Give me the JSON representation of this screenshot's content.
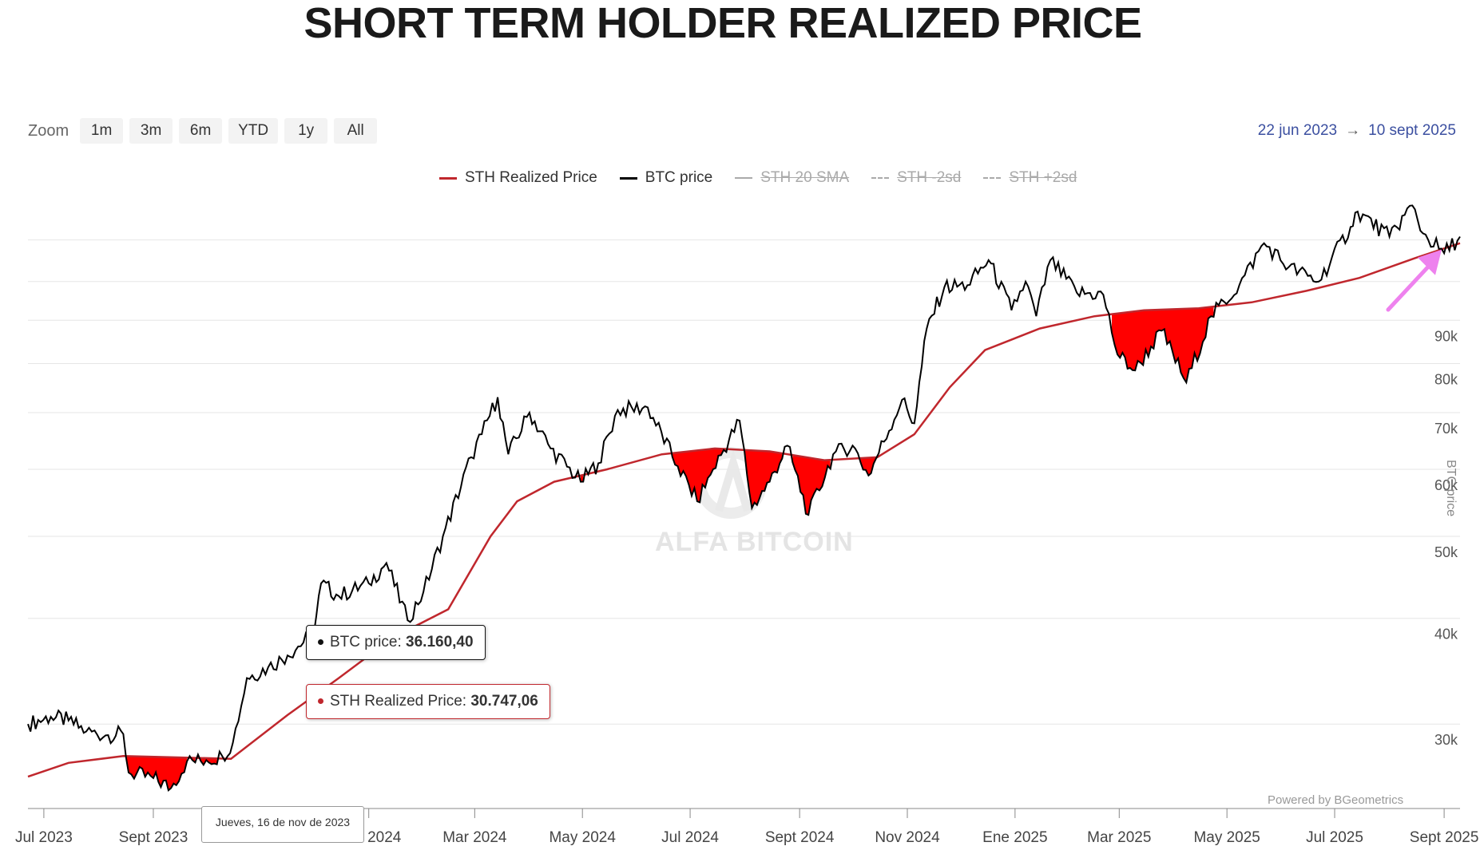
{
  "page_title": "SHORT TERM HOLDER REALIZED PRICE",
  "zoom": {
    "label": "Zoom",
    "buttons": [
      "1m",
      "3m",
      "6m",
      "YTD",
      "1y",
      "All"
    ]
  },
  "date_range": {
    "from": "22 jun 2023",
    "arrow": "→",
    "to": "10 sept 2025"
  },
  "legend": [
    {
      "label": "STH Realized Price",
      "color": "#c0272d",
      "visible": true,
      "style": "solid"
    },
    {
      "label": "BTC price",
      "color": "#000000",
      "visible": true,
      "style": "solid"
    },
    {
      "label": "STH 20 SMA",
      "color": "#aaaaaa",
      "visible": false,
      "style": "solid"
    },
    {
      "label": "STH -2sd",
      "color": "#aaaaaa",
      "visible": false,
      "style": "dashed"
    },
    {
      "label": "STH +2sd",
      "color": "#aaaaaa",
      "visible": false,
      "style": "dashed"
    }
  ],
  "tooltips": {
    "btc_label": "BTC price:",
    "btc_value": "36.160,40",
    "sth_label": "STH Realized Price:",
    "sth_value": "30.747,06",
    "date": "Jueves, 16 de nov de 2023"
  },
  "credit": "Powered by BGeometrics",
  "watermark": "ALFA BITCOIN",
  "right_axis_title": "BTC price",
  "colors": {
    "btc": "#000000",
    "sth": "#c0272d",
    "fill_below": "#ff0000",
    "annotation_arrow": "#ee82ee"
  },
  "chart_data": {
    "type": "line",
    "title": "SHORT TERM HOLDER REALIZED PRICE",
    "y_scale": "log",
    "ylim": [
      24000,
      125000
    ],
    "y_ticks": [
      {
        "value": 30000,
        "label": "30k"
      },
      {
        "value": 40000,
        "label": "40k"
      },
      {
        "value": 50000,
        "label": "50k"
      },
      {
        "value": 60000,
        "label": "60k"
      },
      {
        "value": 70000,
        "label": "70k"
      },
      {
        "value": 80000,
        "label": "80k"
      },
      {
        "value": 90000,
        "label": "90k"
      }
    ],
    "x_range": [
      "2023-06-22",
      "2025-09-10"
    ],
    "x_ticks": [
      {
        "date": "2023-07-01",
        "label": "Jul 2023"
      },
      {
        "date": "2023-09-01",
        "label": "Sept 2023"
      },
      {
        "date": "2024-01-01",
        "label": "Ene 2024"
      },
      {
        "date": "2024-03-01",
        "label": "Mar 2024"
      },
      {
        "date": "2024-05-01",
        "label": "May 2024"
      },
      {
        "date": "2024-07-01",
        "label": "Jul 2024"
      },
      {
        "date": "2024-09-01",
        "label": "Sept 2024"
      },
      {
        "date": "2024-11-01",
        "label": "Nov 2024"
      },
      {
        "date": "2025-01-01",
        "label": "Ene 2025"
      },
      {
        "date": "2025-03-01",
        "label": "Mar 2025"
      },
      {
        "date": "2025-05-01",
        "label": "May 2025"
      },
      {
        "date": "2025-07-01",
        "label": "Jul 2025"
      },
      {
        "date": "2025-09-01",
        "label": "Sept 2025"
      }
    ],
    "series": [
      {
        "name": "BTC price",
        "color": "#000000",
        "points": [
          [
            "2023-06-22",
            30000
          ],
          [
            "2023-07-05",
            30600
          ],
          [
            "2023-07-15",
            30300
          ],
          [
            "2023-07-25",
            29400
          ],
          [
            "2023-08-05",
            29100
          ],
          [
            "2023-08-15",
            29200
          ],
          [
            "2023-08-18",
            26300
          ],
          [
            "2023-09-01",
            25900
          ],
          [
            "2023-09-11",
            25200
          ],
          [
            "2023-09-20",
            27100
          ],
          [
            "2023-10-01",
            27200
          ],
          [
            "2023-10-10",
            27500
          ],
          [
            "2023-10-16",
            28500
          ],
          [
            "2023-10-24",
            34000
          ],
          [
            "2023-11-05",
            35000
          ],
          [
            "2023-11-16",
            36160
          ],
          [
            "2023-12-01",
            38500
          ],
          [
            "2023-12-05",
            44000
          ],
          [
            "2023-12-15",
            42500
          ],
          [
            "2024-01-01",
            44000
          ],
          [
            "2024-01-11",
            46500
          ],
          [
            "2024-01-23",
            39800
          ],
          [
            "2024-02-01",
            43000
          ],
          [
            "2024-02-12",
            50000
          ],
          [
            "2024-02-28",
            62000
          ],
          [
            "2024-03-05",
            66000
          ],
          [
            "2024-03-14",
            73000
          ],
          [
            "2024-03-20",
            62500
          ],
          [
            "2024-04-01",
            70000
          ],
          [
            "2024-04-13",
            63500
          ],
          [
            "2024-04-30",
            58000
          ],
          [
            "2024-05-10",
            61000
          ],
          [
            "2024-05-21",
            70500
          ],
          [
            "2024-06-07",
            71000
          ],
          [
            "2024-06-24",
            60500
          ],
          [
            "2024-07-05",
            55000
          ],
          [
            "2024-07-14",
            60000
          ],
          [
            "2024-07-29",
            68500
          ],
          [
            "2024-08-05",
            54000
          ],
          [
            "2024-08-15",
            58000
          ],
          [
            "2024-08-25",
            64000
          ],
          [
            "2024-09-06",
            53000
          ],
          [
            "2024-09-20",
            62500
          ],
          [
            "2024-10-01",
            64000
          ],
          [
            "2024-10-10",
            59000
          ],
          [
            "2024-10-29",
            72500
          ],
          [
            "2024-11-05",
            68000
          ],
          [
            "2024-11-12",
            88000
          ],
          [
            "2024-11-22",
            98500
          ],
          [
            "2024-12-05",
            99000
          ],
          [
            "2024-12-17",
            106000
          ],
          [
            "2024-12-30",
            92500
          ],
          [
            "2025-01-07",
            100000
          ],
          [
            "2025-01-13",
            91000
          ],
          [
            "2025-01-21",
            106000
          ],
          [
            "2025-02-05",
            97000
          ],
          [
            "2025-02-20",
            96500
          ],
          [
            "2025-02-28",
            82000
          ],
          [
            "2025-03-10",
            78500
          ],
          [
            "2025-03-25",
            87500
          ],
          [
            "2025-04-08",
            76000
          ],
          [
            "2025-04-22",
            91000
          ],
          [
            "2025-05-08",
            99000
          ],
          [
            "2025-05-22",
            111000
          ],
          [
            "2025-06-05",
            104000
          ],
          [
            "2025-06-22",
            100000
          ],
          [
            "2025-07-10",
            116000
          ],
          [
            "2025-07-14",
            121000
          ],
          [
            "2025-08-01",
            113000
          ],
          [
            "2025-08-14",
            123000
          ],
          [
            "2025-08-20",
            114000
          ],
          [
            "2025-09-01",
            108000
          ],
          [
            "2025-09-10",
            113000
          ]
        ]
      },
      {
        "name": "STH Realized Price",
        "color": "#c0272d",
        "points": [
          [
            "2023-06-22",
            26000
          ],
          [
            "2023-07-15",
            27000
          ],
          [
            "2023-08-15",
            27500
          ],
          [
            "2023-09-15",
            27400
          ],
          [
            "2023-10-15",
            27300
          ],
          [
            "2023-11-16",
            30747
          ],
          [
            "2023-12-15",
            34000
          ],
          [
            "2024-01-15",
            38000
          ],
          [
            "2024-02-15",
            41000
          ],
          [
            "2024-03-10",
            50000
          ],
          [
            "2024-03-25",
            55000
          ],
          [
            "2024-04-15",
            58000
          ],
          [
            "2024-05-15",
            60000
          ],
          [
            "2024-06-15",
            62500
          ],
          [
            "2024-07-15",
            63500
          ],
          [
            "2024-08-15",
            63000
          ],
          [
            "2024-09-15",
            61500
          ],
          [
            "2024-10-15",
            62000
          ],
          [
            "2024-11-05",
            66000
          ],
          [
            "2024-11-25",
            75000
          ],
          [
            "2024-12-15",
            83000
          ],
          [
            "2025-01-15",
            88000
          ],
          [
            "2025-02-15",
            91000
          ],
          [
            "2025-03-15",
            92500
          ],
          [
            "2025-04-15",
            93000
          ],
          [
            "2025-05-15",
            94500
          ],
          [
            "2025-06-15",
            97500
          ],
          [
            "2025-07-15",
            101000
          ],
          [
            "2025-08-15",
            106500
          ],
          [
            "2025-09-10",
            111000
          ]
        ]
      }
    ],
    "annotation": "arrow pointing at latest point where BTC price meets STH Realized Price"
  }
}
